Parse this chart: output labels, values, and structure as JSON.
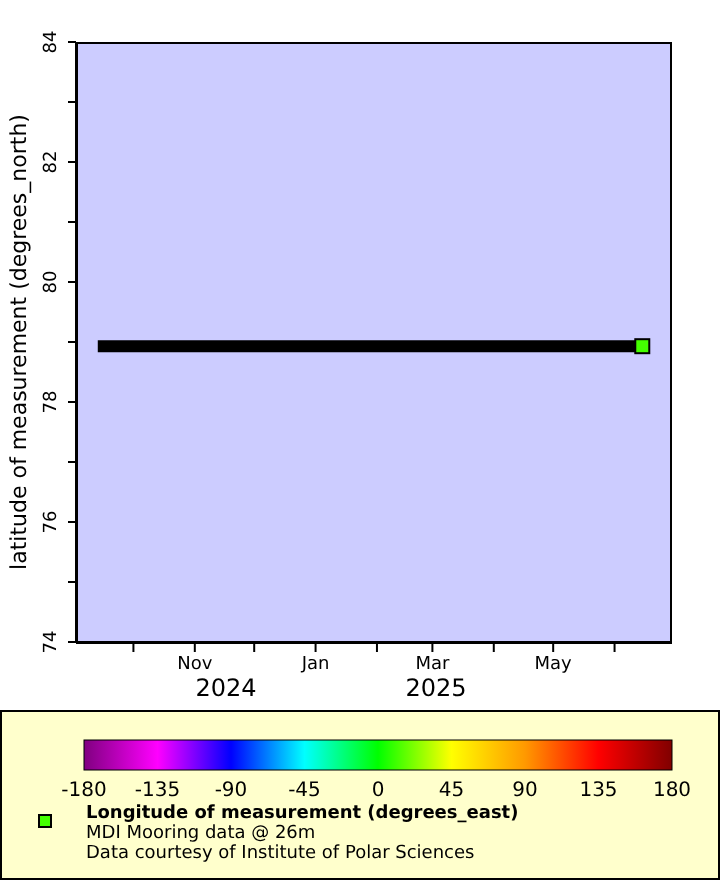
{
  "chart_data": {
    "type": "line",
    "ylabel": "latitude of measurement (degrees_north)",
    "clabel": "Longitude of measurement (degrees_east)",
    "series": [
      {
        "color": "#000000",
        "x": [
          "2024-09-13",
          "2025-06-15"
        ],
        "values": [
          78.93,
          78.93
        ]
      },
      {
        "type": "scatter",
        "x": [
          "2025-06-15"
        ],
        "values": [
          78.93
        ],
        "cvalues": [
          12
        ],
        "marker": "square"
      }
    ],
    "xlim": [
      "2024-09-02",
      "2025-06-29"
    ],
    "xticks": [
      {
        "value": "2024-10-01",
        "label": null
      },
      {
        "value": "2024-11-01",
        "label": "Nov"
      },
      {
        "value": "2024-12-01",
        "label": null
      },
      {
        "value": "2025-01-01",
        "label": "Jan"
      },
      {
        "value": "2025-02-01",
        "label": null
      },
      {
        "value": "2025-03-01",
        "label": "Mar"
      },
      {
        "value": "2025-04-01",
        "label": null
      },
      {
        "value": "2025-05-01",
        "label": "May"
      },
      {
        "value": "2025-06-01",
        "label": null
      }
    ],
    "ylim": [
      74,
      84
    ],
    "yticks": [
      74,
      {
        "value": 75,
        "label": null
      },
      76,
      {
        "value": 77,
        "label": null
      },
      78,
      {
        "value": 79,
        "label": null
      },
      80,
      {
        "value": 81,
        "label": null
      },
      82,
      {
        "value": 83,
        "label": null
      },
      84
    ],
    "clim": [
      -180,
      180
    ],
    "cticks": [
      -180,
      -135,
      -90,
      -45,
      0,
      45,
      90,
      135,
      180
    ],
    "grid": false,
    "annotations": [
      "2024",
      "2025",
      "MDI Mooring data @ 26m",
      "Data courtesy of Institute of Polar Sciences"
    ]
  }
}
